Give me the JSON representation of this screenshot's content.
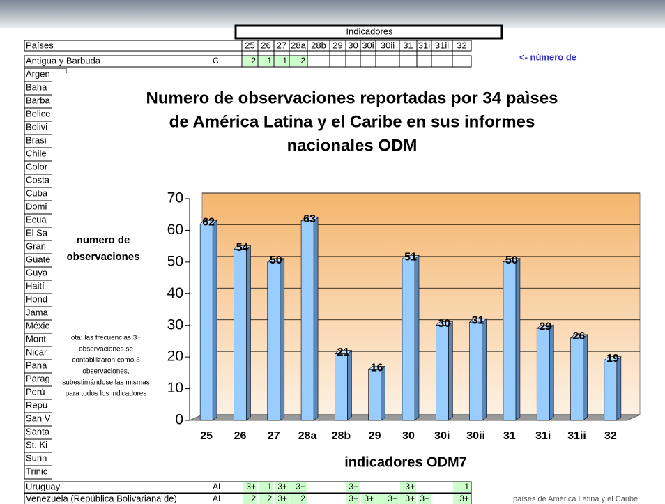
{
  "chart_data": {
    "type": "bar",
    "title": [
      "Numero de observaciones reportadas por 34 paìses",
      "de América Latina y el Caribe en sus informes",
      "nacionales ODM"
    ],
    "y_label": [
      "numero de",
      "observaciones"
    ],
    "x_label": "indicadores ODM7",
    "note": [
      "ota: las frecuencias 3+",
      "observaciones se",
      "contabilizaron como 3",
      "observaciones,",
      "subestimándose las mismas",
      "para todos los indicadores"
    ],
    "categories": [
      "25",
      "26",
      "27",
      "28a",
      "28b",
      "29",
      "30",
      "30i",
      "30ii",
      "31",
      "31i",
      "31ii",
      "32"
    ],
    "values": [
      62,
      54,
      50,
      63,
      21,
      16,
      51,
      30,
      31,
      50,
      29,
      26,
      19
    ],
    "color": "#99ccff",
    "ylim": [
      0,
      70
    ],
    "yticks": [
      0,
      10,
      20,
      30,
      40,
      50,
      60,
      70
    ],
    "grid": true
  },
  "sheet": {
    "header": "Indicadores",
    "paises": "Países",
    "columns": [
      "25",
      "26",
      "27",
      "28a",
      "28b",
      "29",
      "30",
      "30i",
      "30ii",
      "31",
      "31i",
      "31ii",
      "32"
    ],
    "rows": [
      {
        "name": "Antigua y Barbuda",
        "code": "C",
        "cells": [
          "2",
          "1",
          "1",
          "2",
          null,
          null,
          null,
          null,
          null,
          null,
          null,
          null,
          null
        ]
      }
    ],
    "countries": [
      "Argen",
      "Baha",
      "Barba",
      "Belice",
      "Bolivi",
      "Brasi",
      "Chile",
      "Color",
      "Costa",
      "Cuba",
      "Domi",
      "Ecua",
      "El Sa",
      "Gran",
      "Guate",
      "Guya",
      "Haití",
      "Hond",
      "Jama",
      "Méxic",
      "Mont",
      "Nicar",
      "Pana",
      "Parag",
      "Perú",
      "Repú",
      "San V",
      "Santa",
      "St. Ki",
      "Surin",
      "Trinic"
    ],
    "bottom_rows": [
      {
        "name": "Uruguay",
        "code": "AL",
        "cells": [
          "3+",
          "1",
          "3+",
          "3+",
          null,
          null,
          "3+",
          null,
          null,
          "3+",
          null,
          null,
          "1"
        ]
      },
      {
        "name": "Venezuela (República Bolivariana de)",
        "code": "AL",
        "cells": [
          "2",
          "2",
          "3+",
          "2",
          null,
          null,
          "3+",
          "3+",
          "3+",
          "3+",
          "3+",
          null,
          "3+"
        ]
      }
    ],
    "side_note": "<- número de",
    "footer": "países de América Latina y el Caribe"
  }
}
